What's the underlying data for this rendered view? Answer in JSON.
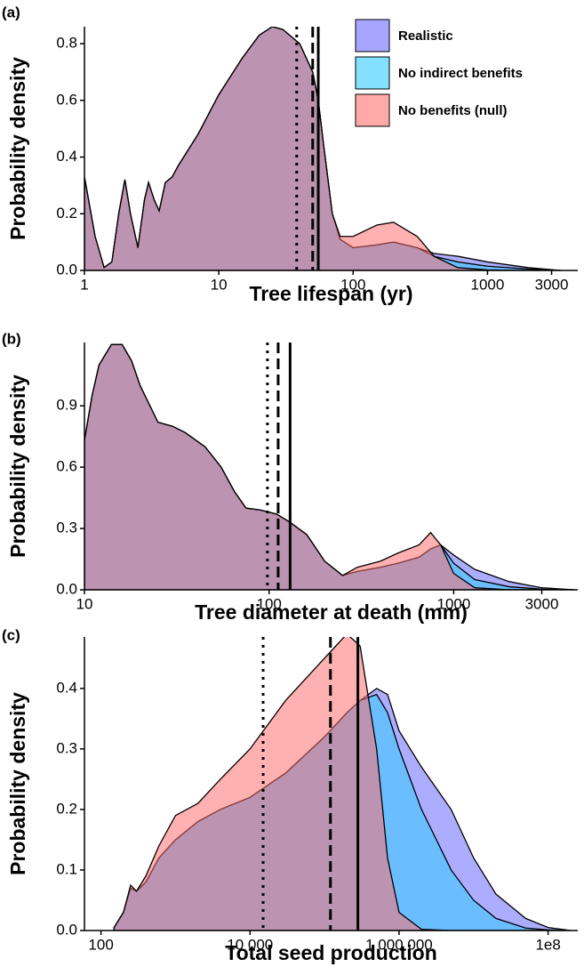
{
  "chart_data": [
    {
      "type": "density",
      "panel_label": "(a)",
      "x_label": "Tree lifespan (yr)",
      "y_label": "Probability density",
      "log_x": true,
      "legend": "top-right",
      "xlim": [
        1,
        4700
      ],
      "xticks": [
        1,
        10,
        100,
        1000,
        3000
      ],
      "ylim": [
        0,
        0.86
      ],
      "yticks": [
        {
          "value": 0,
          "label": "0.0"
        },
        0.2,
        0.4,
        0.6,
        0.8
      ],
      "x": [
        1,
        1.2,
        1.4,
        1.6,
        1.8,
        2,
        2.2,
        2.5,
        2.8,
        3,
        3.3,
        3.6,
        4,
        4.5,
        5,
        7,
        10,
        15,
        20,
        25,
        30,
        40,
        50,
        55,
        60,
        70,
        80,
        100,
        150,
        200,
        300,
        400,
        600,
        1000,
        2000,
        3500
      ],
      "series": [
        {
          "name": "Realistic",
          "color": "#6a6aff",
          "values": [
            0.33,
            0.12,
            0.01,
            0.03,
            0.2,
            0.32,
            0.2,
            0.08,
            0.25,
            0.31,
            0.25,
            0.21,
            0.31,
            0.33,
            0.37,
            0.48,
            0.62,
            0.75,
            0.83,
            0.86,
            0.85,
            0.8,
            0.7,
            0.6,
            0.45,
            0.2,
            0.11,
            0.08,
            0.09,
            0.1,
            0.08,
            0.06,
            0.05,
            0.03,
            0.01,
            0
          ]
        },
        {
          "name": "No indirect benefits",
          "color": "#33ccff",
          "values": [
            0.33,
            0.12,
            0.01,
            0.03,
            0.2,
            0.32,
            0.2,
            0.08,
            0.25,
            0.31,
            0.25,
            0.21,
            0.31,
            0.33,
            0.37,
            0.48,
            0.62,
            0.75,
            0.83,
            0.86,
            0.85,
            0.8,
            0.7,
            0.6,
            0.45,
            0.2,
            0.11,
            0.08,
            0.09,
            0.1,
            0.08,
            0.05,
            0.03,
            0.015,
            0.005,
            0
          ]
        },
        {
          "name": "No benefits (null)",
          "color": "#ff6f6f",
          "values": [
            0.33,
            0.12,
            0.01,
            0.03,
            0.2,
            0.32,
            0.2,
            0.08,
            0.25,
            0.31,
            0.25,
            0.21,
            0.31,
            0.33,
            0.37,
            0.48,
            0.62,
            0.75,
            0.83,
            0.86,
            0.85,
            0.8,
            0.7,
            0.6,
            0.45,
            0.2,
            0.12,
            0.12,
            0.16,
            0.17,
            0.12,
            0.05,
            0.01,
            0.002,
            0,
            0
          ]
        }
      ],
      "vlines": [
        {
          "x": 38,
          "linetype": "dotted"
        },
        {
          "x": 50,
          "linetype": "dashed"
        },
        {
          "x": 55,
          "linetype": "solid"
        }
      ]
    },
    {
      "type": "density",
      "panel_label": "(b)",
      "x_label": "Tree diameter at death (mm)",
      "y_label": "Probability density",
      "log_x": true,
      "xlim": [
        10,
        4700
      ],
      "xticks": [
        10,
        100,
        1000,
        3000
      ],
      "ylim": [
        0,
        1.21
      ],
      "yticks": [
        {
          "value": 0,
          "label": "0.0"
        },
        0.3,
        0.6,
        0.9
      ],
      "x": [
        10,
        11,
        12,
        14,
        16,
        18,
        20,
        25,
        30,
        35,
        45,
        55,
        65,
        75,
        90,
        110,
        130,
        160,
        200,
        250,
        300,
        400,
        500,
        650,
        750,
        850,
        1000,
        1300,
        2000,
        3000,
        4500
      ],
      "series": [
        {
          "name": "Realistic",
          "color": "#6a6aff",
          "values": [
            0.73,
            0.95,
            1.1,
            1.2,
            1.2,
            1.12,
            1.0,
            0.82,
            0.8,
            0.77,
            0.7,
            0.6,
            0.48,
            0.4,
            0.39,
            0.37,
            0.33,
            0.27,
            0.14,
            0.07,
            0.09,
            0.11,
            0.13,
            0.16,
            0.2,
            0.22,
            0.17,
            0.1,
            0.04,
            0.01,
            0
          ]
        },
        {
          "name": "No indirect benefits",
          "color": "#33ccff",
          "values": [
            0.73,
            0.95,
            1.1,
            1.2,
            1.2,
            1.12,
            1.0,
            0.82,
            0.8,
            0.77,
            0.7,
            0.6,
            0.48,
            0.4,
            0.39,
            0.37,
            0.33,
            0.27,
            0.14,
            0.07,
            0.09,
            0.11,
            0.13,
            0.16,
            0.2,
            0.22,
            0.13,
            0.05,
            0.015,
            0.003,
            0
          ]
        },
        {
          "name": "No benefits (null)",
          "color": "#ff6f6f",
          "values": [
            0.73,
            0.95,
            1.1,
            1.2,
            1.2,
            1.12,
            1.0,
            0.82,
            0.8,
            0.77,
            0.7,
            0.6,
            0.48,
            0.4,
            0.39,
            0.37,
            0.33,
            0.27,
            0.14,
            0.07,
            0.11,
            0.14,
            0.18,
            0.22,
            0.28,
            0.22,
            0.08,
            0.01,
            0,
            0,
            0
          ]
        }
      ],
      "vlines": [
        {
          "x": 98,
          "linetype": "dotted"
        },
        {
          "x": 112,
          "linetype": "dashed"
        },
        {
          "x": 130,
          "linetype": "solid"
        }
      ]
    },
    {
      "type": "density",
      "panel_label": "(c)",
      "x_label": "Total seed production",
      "y_label": "Probability density",
      "log_x": true,
      "xlim": [
        60,
        250000000
      ],
      "xticks": [
        100,
        {
          "value": 10000,
          "label": "10 000"
        },
        {
          "value": 1000000,
          "label": "1 000 000"
        },
        {
          "value": 100000000,
          "label": "1e8"
        }
      ],
      "ylim": [
        0,
        0.485
      ],
      "yticks": [
        {
          "value": 0,
          "label": "0.0"
        },
        0.1,
        0.2,
        0.3,
        0.4
      ],
      "x": [
        150,
        200,
        250,
        300,
        400,
        600,
        1000,
        2000,
        4000,
        10000,
        30000,
        100000,
        200000,
        300000,
        500000,
        700000,
        1000000,
        2000000,
        5000000,
        10000000,
        20000000,
        50000000,
        100000000,
        200000000
      ],
      "series": [
        {
          "name": "Realistic",
          "color": "#6a6aff",
          "values": [
            0.005,
            0.03,
            0.07,
            0.065,
            0.08,
            0.12,
            0.15,
            0.18,
            0.2,
            0.22,
            0.26,
            0.32,
            0.36,
            0.38,
            0.4,
            0.39,
            0.33,
            0.27,
            0.2,
            0.12,
            0.06,
            0.02,
            0.005,
            0
          ]
        },
        {
          "name": "No indirect benefits",
          "color": "#33ccff",
          "values": [
            0.005,
            0.03,
            0.07,
            0.065,
            0.08,
            0.12,
            0.15,
            0.18,
            0.2,
            0.22,
            0.26,
            0.32,
            0.36,
            0.38,
            0.39,
            0.36,
            0.3,
            0.2,
            0.1,
            0.05,
            0.02,
            0.004,
            0.001,
            0
          ]
        },
        {
          "name": "No benefits (null)",
          "color": "#ff6f6f",
          "values": [
            0.005,
            0.03,
            0.075,
            0.065,
            0.09,
            0.14,
            0.19,
            0.21,
            0.25,
            0.3,
            0.38,
            0.45,
            0.49,
            0.47,
            0.3,
            0.12,
            0.03,
            0.002,
            0,
            0,
            0,
            0,
            0,
            0
          ]
        }
      ],
      "vlines": [
        {
          "x": 15000,
          "linetype": "dotted"
        },
        {
          "x": 120000,
          "linetype": "dashed"
        },
        {
          "x": 280000,
          "linetype": "solid"
        }
      ]
    }
  ]
}
